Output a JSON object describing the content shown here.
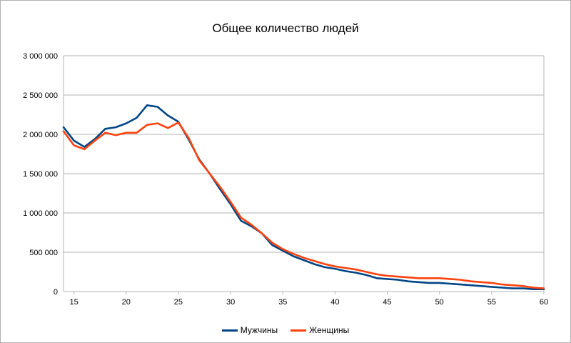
{
  "chart_data": {
    "type": "line",
    "title": "Общее количество людей",
    "xlabel": "",
    "ylabel": "",
    "xlim": [
      14,
      60
    ],
    "ylim": [
      0,
      3000000
    ],
    "x_ticks": [
      15,
      20,
      25,
      30,
      35,
      40,
      45,
      50,
      55,
      60
    ],
    "y_ticks": [
      0,
      500000,
      1000000,
      1500000,
      2000000,
      2500000,
      3000000
    ],
    "y_tick_labels": [
      "0",
      "500 000",
      "1 000 000",
      "1 500 000",
      "2 000 000",
      "2 500 000",
      "3 000 000"
    ],
    "grid": "horizontal",
    "legend": "bottom",
    "x": [
      14,
      15,
      16,
      17,
      18,
      19,
      20,
      21,
      22,
      23,
      24,
      25,
      26,
      27,
      28,
      29,
      30,
      31,
      32,
      33,
      34,
      35,
      36,
      37,
      38,
      39,
      40,
      41,
      42,
      43,
      44,
      45,
      46,
      47,
      48,
      49,
      50,
      51,
      52,
      53,
      54,
      55,
      56,
      57,
      58,
      59,
      60
    ],
    "series": [
      {
        "name": "Мужчины",
        "color": "#004586",
        "values": [
          2090000,
          1920000,
          1840000,
          1940000,
          2070000,
          2090000,
          2140000,
          2210000,
          2370000,
          2350000,
          2240000,
          2160000,
          1930000,
          1680000,
          1500000,
          1300000,
          1110000,
          900000,
          830000,
          740000,
          590000,
          520000,
          450000,
          400000,
          350000,
          310000,
          290000,
          260000,
          240000,
          210000,
          170000,
          160000,
          150000,
          130000,
          120000,
          110000,
          110000,
          100000,
          90000,
          80000,
          70000,
          60000,
          50000,
          40000,
          40000,
          30000,
          30000
        ]
      },
      {
        "name": "Женщины",
        "color": "#ff420e",
        "values": [
          2040000,
          1860000,
          1810000,
          1920000,
          2020000,
          1990000,
          2020000,
          2020000,
          2120000,
          2140000,
          2080000,
          2150000,
          1950000,
          1670000,
          1500000,
          1330000,
          1140000,
          940000,
          850000,
          740000,
          620000,
          540000,
          480000,
          430000,
          390000,
          350000,
          320000,
          300000,
          280000,
          250000,
          220000,
          200000,
          190000,
          180000,
          170000,
          170000,
          170000,
          160000,
          150000,
          130000,
          120000,
          110000,
          90000,
          80000,
          70000,
          50000,
          40000
        ]
      }
    ]
  }
}
